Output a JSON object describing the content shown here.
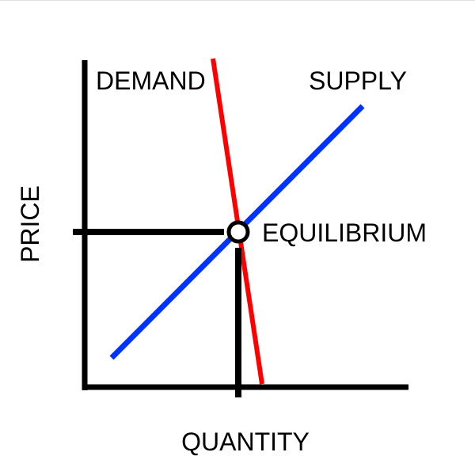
{
  "diagram": {
    "labels": {
      "demand": "DEMAND",
      "supply": "SUPPLY",
      "equilibrium": "EQUILIBRIUM",
      "x_axis": "QUANTITY",
      "y_axis": "PRICE"
    },
    "colors": {
      "axes": "#000000",
      "demand_line": "#ff0000",
      "supply_line": "#0033ff",
      "guides": "#000000",
      "equilibrium_fill": "#ffffff",
      "background": "#ffffff"
    }
  }
}
